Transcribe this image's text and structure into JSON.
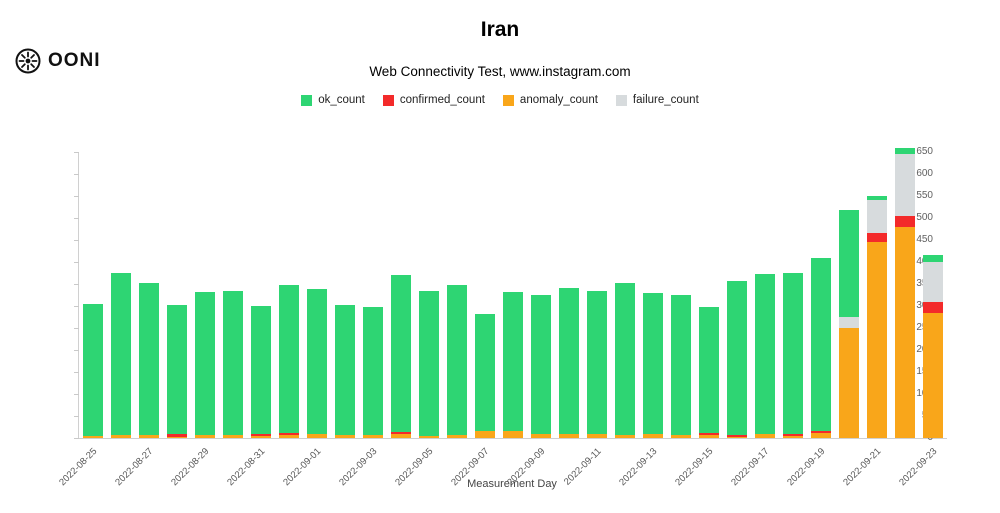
{
  "header": {
    "logo_text": "OONI",
    "title": "Iran",
    "subtitle": "Web Connectivity Test, www.instagram.com"
  },
  "legend": [
    {
      "label": "ok_count",
      "color": "#2ed573"
    },
    {
      "label": "confirmed_count",
      "color": "#f32a2a"
    },
    {
      "label": "anomaly_count",
      "color": "#f9a61a"
    },
    {
      "label": "failure_count",
      "color": "#d7dbdd"
    }
  ],
  "chart_data": {
    "type": "bar",
    "title": "Iran",
    "subtitle": "Web Connectivity Test, www.instagram.com",
    "xlabel": "Measurement Day",
    "ylabel": "",
    "ylim": [
      0,
      650
    ],
    "ytick_step": 50,
    "grid": false,
    "legend_position": "top",
    "stack_order": [
      "anomaly",
      "confirmed",
      "failure",
      "ok"
    ],
    "colors": {
      "ok": "#2ed573",
      "confirmed": "#f32a2a",
      "anomaly": "#f9a61a",
      "failure": "#d7dbdd"
    },
    "series_names": [
      "ok_count",
      "confirmed_count",
      "anomaly_count",
      "failure_count"
    ],
    "bars": [
      {
        "label": "2022-08-25",
        "ok": 300,
        "confirmed": 0,
        "anomaly": 5,
        "failure": 0
      },
      {
        "label": "",
        "ok": 370,
        "confirmed": 0,
        "anomaly": 6,
        "failure": 0
      },
      {
        "label": "2022-08-27",
        "ok": 345,
        "confirmed": 0,
        "anomaly": 7,
        "failure": 0
      },
      {
        "label": "",
        "ok": 292,
        "confirmed": 8,
        "anomaly": 2,
        "failure": 0
      },
      {
        "label": "2022-08-29",
        "ok": 325,
        "confirmed": 0,
        "anomaly": 6,
        "failure": 0
      },
      {
        "label": "",
        "ok": 328,
        "confirmed": 0,
        "anomaly": 7,
        "failure": 0
      },
      {
        "label": "2022-08-31",
        "ok": 290,
        "confirmed": 4,
        "anomaly": 5,
        "failure": 0
      },
      {
        "label": "",
        "ok": 337,
        "confirmed": 5,
        "anomaly": 6,
        "failure": 0
      },
      {
        "label": "2022-09-01",
        "ok": 331,
        "confirmed": 0,
        "anomaly": 8,
        "failure": 0
      },
      {
        "label": "",
        "ok": 295,
        "confirmed": 0,
        "anomaly": 7,
        "failure": 0
      },
      {
        "label": "2022-09-03",
        "ok": 290,
        "confirmed": 0,
        "anomaly": 7,
        "failure": 0
      },
      {
        "label": "",
        "ok": 358,
        "confirmed": 5,
        "anomaly": 8,
        "failure": 0
      },
      {
        "label": "2022-09-05",
        "ok": 330,
        "confirmed": 0,
        "anomaly": 5,
        "failure": 0
      },
      {
        "label": "",
        "ok": 341,
        "confirmed": 0,
        "anomaly": 7,
        "failure": 0
      },
      {
        "label": "2022-09-07",
        "ok": 268,
        "confirmed": 0,
        "anomaly": 15,
        "failure": 0
      },
      {
        "label": "",
        "ok": 318,
        "confirmed": 0,
        "anomaly": 15,
        "failure": 0
      },
      {
        "label": "2022-09-09",
        "ok": 315,
        "confirmed": 0,
        "anomaly": 10,
        "failure": 0
      },
      {
        "label": "",
        "ok": 332,
        "confirmed": 0,
        "anomaly": 8,
        "failure": 0
      },
      {
        "label": "2022-09-11",
        "ok": 327,
        "confirmed": 0,
        "anomaly": 8,
        "failure": 0
      },
      {
        "label": "",
        "ok": 345,
        "confirmed": 0,
        "anomaly": 7,
        "failure": 0
      },
      {
        "label": "2022-09-13",
        "ok": 322,
        "confirmed": 0,
        "anomaly": 8,
        "failure": 0
      },
      {
        "label": "",
        "ok": 318,
        "confirmed": 0,
        "anomaly": 7,
        "failure": 0
      },
      {
        "label": "2022-09-15",
        "ok": 285,
        "confirmed": 5,
        "anomaly": 7,
        "failure": 0
      },
      {
        "label": "",
        "ok": 350,
        "confirmed": 5,
        "anomaly": 3,
        "failure": 0
      },
      {
        "label": "2022-09-17",
        "ok": 363,
        "confirmed": 2,
        "anomaly": 8,
        "failure": 0
      },
      {
        "label": "",
        "ok": 365,
        "confirmed": 6,
        "anomaly": 4,
        "failure": 0
      },
      {
        "label": "2022-09-19",
        "ok": 395,
        "confirmed": 3,
        "anomaly": 12,
        "failure": 0
      },
      {
        "label": "",
        "ok": 243,
        "confirmed": 0,
        "anomaly": 250,
        "failure": 25
      },
      {
        "label": "2022-09-21",
        "ok": 10,
        "confirmed": 20,
        "anomaly": 445,
        "failure": 75
      },
      {
        "label": "",
        "ok": 15,
        "confirmed": 25,
        "anomaly": 480,
        "failure": 140
      },
      {
        "label": "2022-09-23",
        "ok": 15,
        "confirmed": 25,
        "anomaly": 285,
        "failure": 90
      }
    ]
  }
}
